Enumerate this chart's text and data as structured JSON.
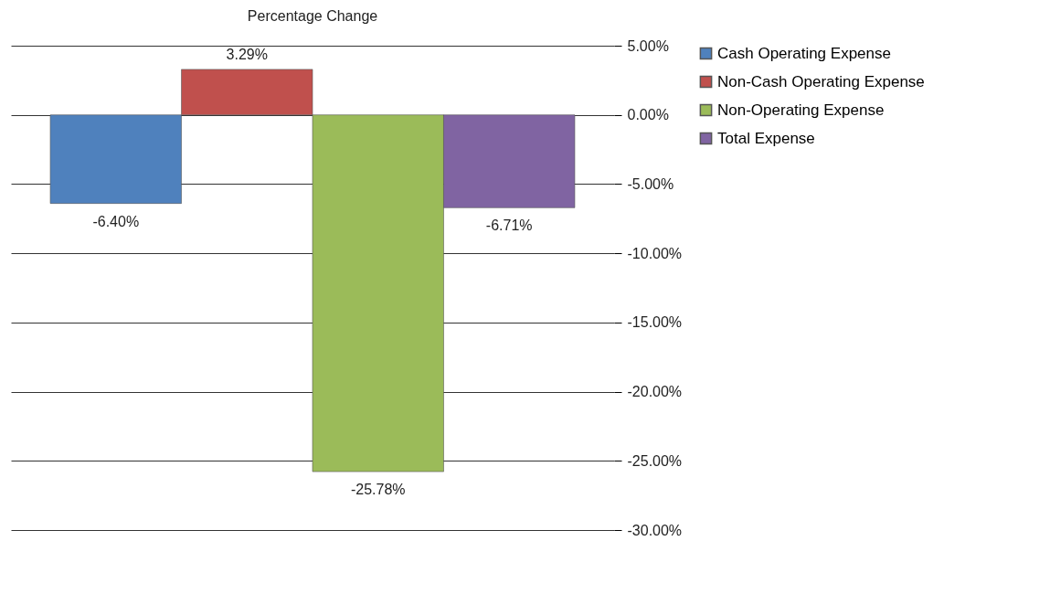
{
  "chart_data": {
    "type": "bar",
    "title": "Percentage Change",
    "categories": [
      null
    ],
    "series": [
      {
        "name": "Cash Operating Expense",
        "color": "#4f81bd",
        "values": [
          -6.4
        ],
        "value_labels": [
          "-6.40%"
        ]
      },
      {
        "name": "Non-Cash Operating Expense",
        "color": "#c0504d",
        "values": [
          3.29
        ],
        "value_labels": [
          "3.29%"
        ]
      },
      {
        "name": "Non-Operating Expense",
        "color": "#9bbb59",
        "values": [
          -25.78
        ],
        "value_labels": [
          "-25.78%"
        ]
      },
      {
        "name": "Total Expense",
        "color": "#8064a2",
        "values": [
          -6.71
        ],
        "value_labels": [
          "-6.71%"
        ]
      }
    ],
    "ylim": [
      -30,
      5
    ],
    "yticks": [
      {
        "value": 5,
        "label": "5.00%"
      },
      {
        "value": 0,
        "label": "0.00%"
      },
      {
        "value": -5,
        "label": "-5.00%"
      },
      {
        "value": -10,
        "label": "-10.00%"
      },
      {
        "value": -15,
        "label": "-15.00%"
      },
      {
        "value": -20,
        "label": "-20.00%"
      },
      {
        "value": -25,
        "label": "-25.00%"
      },
      {
        "value": -30,
        "label": "-30.00%"
      }
    ],
    "grid": "y",
    "legend": "right"
  }
}
